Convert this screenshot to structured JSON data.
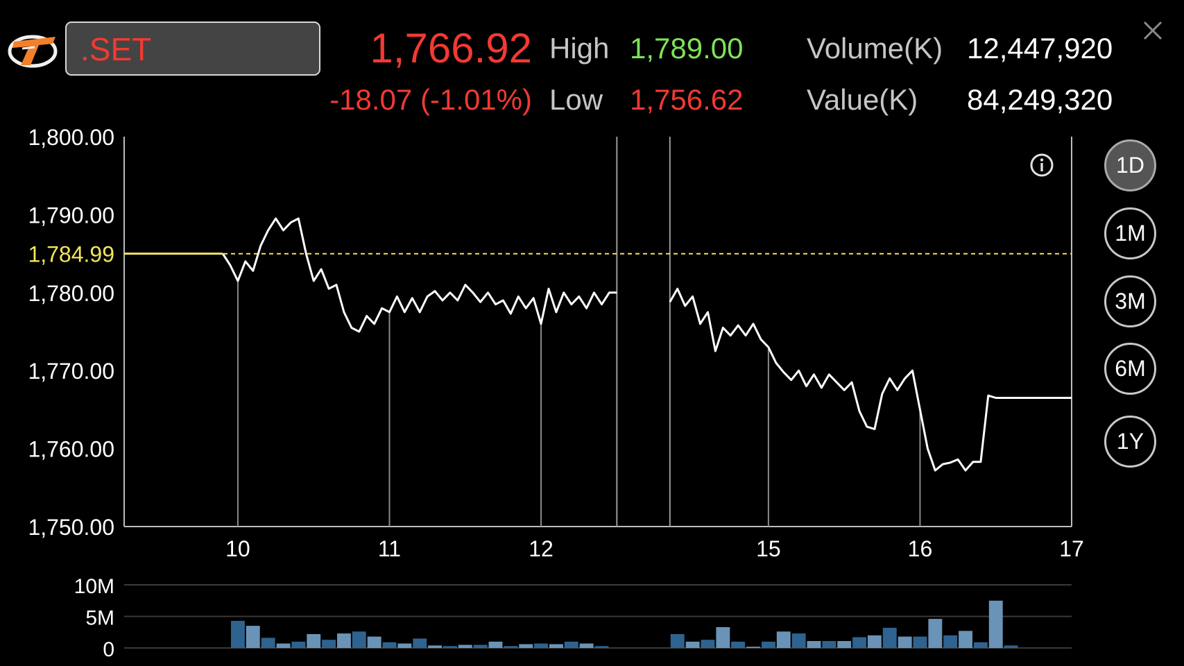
{
  "header": {
    "symbol": ".SET",
    "price": "1,766.92",
    "change": "-18.07 (-1.01%)",
    "high_label": "High",
    "high_value": "1,789.00",
    "low_label": "Low",
    "low_value": "1,756.62",
    "volume_label": "Volume(K)",
    "volume_value": "12,447,920",
    "value_label": "Value(K)",
    "value_value": "84,249,320"
  },
  "icons": {
    "logo": "brand-logo-icon",
    "close": "close-icon",
    "info": "info-icon"
  },
  "colors": {
    "down": "#f23a32",
    "up": "#7ee35a",
    "prev_close": "#f3e55c",
    "line": "#ffffff",
    "volume_bar": "#2e6390",
    "volume_bar_light": "#6a94b7"
  },
  "timeframes": [
    {
      "label": "1D",
      "active": true
    },
    {
      "label": "1M",
      "active": false
    },
    {
      "label": "3M",
      "active": false
    },
    {
      "label": "6M",
      "active": false
    },
    {
      "label": "1Y",
      "active": false
    }
  ],
  "chart_data": {
    "type": "line",
    "title": "",
    "ylim": [
      1750,
      1800
    ],
    "yticks": [
      "1,800.00",
      "1,790.00",
      "1,780.00",
      "1,770.00",
      "1,760.00",
      "1,750.00"
    ],
    "ytick_values": [
      1800,
      1790,
      1780,
      1770,
      1760,
      1750
    ],
    "prev_close": 1784.99,
    "prev_close_label": "1,784.99",
    "xticks": [
      "10",
      "11",
      "12",
      "15",
      "16",
      "17"
    ],
    "xtick_positions": [
      1.5,
      3.5,
      5.5,
      8.5,
      10.5,
      12.5
    ],
    "xlim": [
      0,
      12.5
    ],
    "session_breaks": [
      6.5,
      7.2
    ],
    "grid": false,
    "series": [
      {
        "x": [
          0,
          1.3,
          1.4,
          1.5,
          1.6,
          1.7,
          1.8,
          1.9,
          2.0,
          2.1,
          2.2,
          2.3,
          2.4,
          2.5,
          2.6,
          2.7,
          2.8,
          2.9,
          3.0,
          3.1,
          3.2,
          3.3,
          3.4,
          3.5,
          3.6,
          3.7,
          3.8,
          3.9,
          4.0,
          4.1,
          4.2,
          4.3,
          4.4,
          4.5,
          4.6,
          4.7,
          4.8,
          4.9,
          5.0,
          5.1,
          5.2,
          5.3,
          5.4,
          5.5,
          5.6,
          5.7,
          5.8,
          5.9,
          6.0,
          6.1,
          6.2,
          6.3,
          6.4,
          6.5
        ],
        "y": [
          1785,
          1785,
          1783.5,
          1781.5,
          1784,
          1782.8,
          1786,
          1788,
          1789.5,
          1788,
          1789,
          1789.5,
          1785,
          1781.5,
          1783,
          1780.5,
          1781,
          1777.5,
          1775.5,
          1775,
          1777,
          1776,
          1778,
          1777.5,
          1779.5,
          1777.5,
          1779.3,
          1777.5,
          1779.5,
          1780.2,
          1779,
          1780,
          1779,
          1781,
          1780,
          1778.8,
          1780,
          1778.5,
          1779,
          1777.3,
          1779.5,
          1778,
          1779.3,
          1776,
          1780.5,
          1777.5,
          1780,
          1778.5,
          1779.5,
          1778,
          1780,
          1778.5,
          1780,
          1780
        ]
      },
      {
        "x": [
          7.2,
          7.3,
          7.4,
          7.5,
          7.6,
          7.7,
          7.8,
          7.9,
          8.0,
          8.1,
          8.2,
          8.3,
          8.4,
          8.5,
          8.6,
          8.7,
          8.8,
          8.9,
          9.0,
          9.1,
          9.2,
          9.3,
          9.4,
          9.5,
          9.6,
          9.7,
          9.8,
          9.9,
          10.0,
          10.1,
          10.2,
          10.3,
          10.4,
          10.5,
          10.6,
          10.7,
          10.8,
          10.9,
          11.0,
          11.1,
          11.2,
          11.3,
          11.4,
          11.5,
          11.6,
          11.7,
          11.8,
          11.9,
          12.0,
          12.1,
          12.2,
          12.3,
          12.4,
          12.5
        ],
        "y": [
          1778.8,
          1780.5,
          1778.3,
          1779.5,
          1776,
          1777.5,
          1772.5,
          1775.5,
          1774.5,
          1775.8,
          1774.5,
          1776,
          1774,
          1773,
          1771,
          1769.8,
          1768.8,
          1770,
          1768,
          1769.5,
          1767.8,
          1769.5,
          1768.5,
          1767.5,
          1768.5,
          1764.8,
          1762.8,
          1762.5,
          1767,
          1769,
          1767.5,
          1769,
          1770,
          1765,
          1760,
          1757.2,
          1758,
          1758.2,
          1758.6,
          1757.2,
          1758.3,
          1758.3,
          1766.8,
          1766.5,
          1766.5,
          1766.5,
          1766.5,
          1766.5,
          1766.5,
          1766.5,
          1766.5,
          1766.5,
          1766.5,
          1766.5
        ]
      }
    ],
    "volume": {
      "ylim": [
        0,
        10000000
      ],
      "yticks": [
        "10M",
        "5M",
        "0"
      ],
      "ytick_values": [
        10000000,
        5000000,
        0
      ],
      "x": [
        1.5,
        1.7,
        1.9,
        2.1,
        2.3,
        2.5,
        2.7,
        2.9,
        3.1,
        3.3,
        3.5,
        3.7,
        3.9,
        4.1,
        4.3,
        4.5,
        4.7,
        4.9,
        5.1,
        5.3,
        5.5,
        5.7,
        5.9,
        6.1,
        6.3,
        6.5,
        7.3,
        7.5,
        7.7,
        7.9,
        8.1,
        8.3,
        8.5,
        8.7,
        8.9,
        9.1,
        9.3,
        9.5,
        9.7,
        9.9,
        10.1,
        10.3,
        10.5,
        10.7,
        10.9,
        11.1,
        11.3,
        11.5,
        11.7,
        11.9
      ],
      "values": [
        4300000,
        3500000,
        1600000,
        700000,
        1000000,
        2200000,
        1300000,
        2300000,
        2600000,
        1800000,
        900000,
        700000,
        1500000,
        400000,
        300000,
        500000,
        500000,
        1000000,
        300000,
        600000,
        700000,
        600000,
        1000000,
        700000,
        300000,
        0,
        2200000,
        1000000,
        1300000,
        3300000,
        1000000,
        200000,
        1000000,
        2600000,
        2300000,
        1100000,
        1100000,
        1100000,
        1700000,
        2000000,
        3200000,
        1800000,
        1800000,
        4600000,
        2000000,
        2700000,
        900000,
        7500000,
        400000,
        0
      ]
    }
  }
}
